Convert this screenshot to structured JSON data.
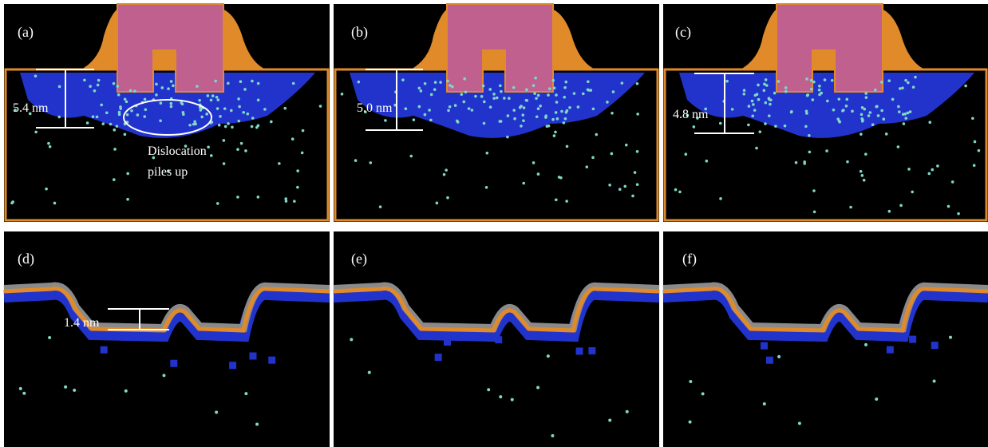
{
  "panels": [
    {
      "label": "(a)",
      "annotations": [
        "5.4 nm",
        "Dislocation",
        "piles up"
      ]
    },
    {
      "label": "(b)",
      "annotations": [
        "5.0 nm"
      ]
    },
    {
      "label": "(c)",
      "annotations": [
        "4.8 nm"
      ]
    },
    {
      "label": "(d)",
      "annotations": [
        "1.4 nm"
      ]
    },
    {
      "label": "(e)",
      "annotations": []
    },
    {
      "label": "(f)",
      "annotations": []
    }
  ]
}
